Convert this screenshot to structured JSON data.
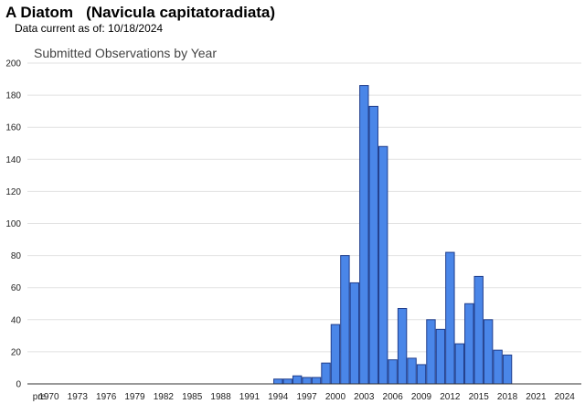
{
  "header": {
    "title": "A Diatom   (Navicula capitatoradiata)",
    "data_current": "Data current as of: 10/18/2024"
  },
  "colors": {
    "bar_fill": "#4a86e8",
    "bar_stroke": "#1f3d8c",
    "grid": "#e2e2e2",
    "axis": "#333333"
  },
  "chart_data": {
    "type": "bar",
    "title": "Submitted Observations by Year",
    "xlabel": "",
    "ylabel": "",
    "ylim": [
      0,
      200
    ],
    "yticks": [
      0,
      20,
      40,
      60,
      80,
      100,
      120,
      140,
      160,
      180,
      200
    ],
    "grid": true,
    "legend": "none",
    "categories": [
      "pre",
      "1970",
      "1971",
      "1972",
      "1973",
      "1974",
      "1975",
      "1976",
      "1977",
      "1978",
      "1979",
      "1980",
      "1981",
      "1982",
      "1983",
      "1984",
      "1985",
      "1986",
      "1987",
      "1988",
      "1989",
      "1990",
      "1991",
      "1992",
      "1993",
      "1994",
      "1995",
      "1996",
      "1997",
      "1998",
      "1999",
      "2000",
      "2001",
      "2002",
      "2003",
      "2004",
      "2005",
      "2006",
      "2007",
      "2008",
      "2009",
      "2010",
      "2011",
      "2012",
      "2013",
      "2014",
      "2015",
      "2016",
      "2017",
      "2018",
      "2019",
      "2020",
      "2021",
      "2022",
      "2023",
      "2024"
    ],
    "tick_labels": [
      "pre",
      "1970",
      "1973",
      "1976",
      "1979",
      "1982",
      "1985",
      "1988",
      "1991",
      "1994",
      "1997",
      "2000",
      "2003",
      "2006",
      "2009",
      "2012",
      "2015",
      "2018",
      "2021",
      "2024"
    ],
    "values": [
      0,
      0,
      0,
      0,
      0,
      0,
      0,
      0,
      0,
      0,
      0,
      0,
      0,
      0,
      0,
      0,
      0,
      0,
      0,
      0,
      0,
      0,
      0,
      0,
      0,
      3,
      3,
      5,
      4,
      4,
      13,
      37,
      80,
      63,
      186,
      173,
      148,
      15,
      47,
      16,
      12,
      40,
      34,
      82,
      25,
      50,
      67,
      40,
      21,
      18,
      0,
      0,
      0,
      0,
      0,
      0
    ]
  }
}
